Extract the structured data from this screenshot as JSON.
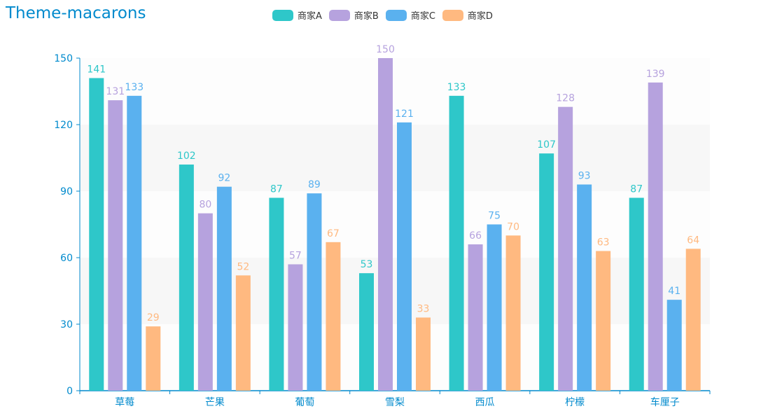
{
  "chart_data": {
    "type": "bar",
    "title": "Theme-macarons",
    "categories": [
      "草莓",
      "芒果",
      "葡萄",
      "雪梨",
      "西瓜",
      "柠檬",
      "车厘子"
    ],
    "series": [
      {
        "name": "商家A",
        "color": "#2ec7c9",
        "values": [
          141,
          102,
          87,
          53,
          133,
          107,
          87
        ]
      },
      {
        "name": "商家B",
        "color": "#b6a2de",
        "values": [
          131,
          80,
          57,
          150,
          66,
          128,
          139
        ]
      },
      {
        "name": "商家C",
        "color": "#5ab1ef",
        "values": [
          133,
          92,
          89,
          121,
          75,
          93,
          41
        ]
      },
      {
        "name": "商家D",
        "color": "#ffb980",
        "values": [
          29,
          52,
          67,
          33,
          70,
          63,
          64
        ]
      }
    ],
    "ylim": [
      0,
      150
    ],
    "yticks": [
      0,
      30,
      60,
      90,
      120,
      150
    ],
    "xlabel": "",
    "ylabel": "",
    "legend_position": "top-center",
    "axis_color": "#008acd"
  }
}
